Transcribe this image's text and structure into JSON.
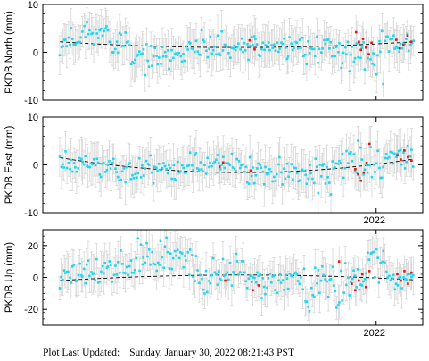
{
  "chart_data": [
    {
      "type": "scatter",
      "ylabel": "PKDB North (mm)",
      "ylim": [
        -10,
        10
      ],
      "yticks": [
        10,
        0,
        -10
      ],
      "xtick_labels": [],
      "trend": {
        "start": 2.2,
        "mid": 1.0,
        "end": 2.2
      },
      "segments": [
        {
          "t0": 0.0,
          "t1": 0.06,
          "center": 2.5,
          "amp": 1.2
        },
        {
          "t0": 0.06,
          "t1": 0.14,
          "center": 4.3,
          "amp": 1.0
        },
        {
          "t0": 0.14,
          "t1": 0.2,
          "center": 2.0,
          "amp": 1.3
        },
        {
          "t0": 0.2,
          "t1": 0.33,
          "center": -1.4,
          "amp": 1.4
        },
        {
          "t0": 0.33,
          "t1": 0.52,
          "center": 0.6,
          "amp": 1.4
        },
        {
          "t0": 0.52,
          "t1": 0.68,
          "center": 1.3,
          "amp": 1.3
        },
        {
          "t0": 0.68,
          "t1": 0.78,
          "center": 0.5,
          "amp": 1.5
        },
        {
          "t0": 0.78,
          "t1": 0.86,
          "center": 0.0,
          "amp": 1.8
        },
        {
          "t0": 0.86,
          "t1": 0.92,
          "center": -0.8,
          "amp": 2.6
        },
        {
          "t0": 0.92,
          "t1": 1.0,
          "center": 1.8,
          "amp": 1.5
        }
      ],
      "red_points": [
        {
          "t": 0.537,
          "y": 2.5
        },
        {
          "t": 0.551,
          "y": 0.6
        },
        {
          "t": 0.838,
          "y": 4.2
        },
        {
          "t": 0.846,
          "y": 2.2
        },
        {
          "t": 0.852,
          "y": 0.5
        },
        {
          "t": 0.858,
          "y": 2.8
        },
        {
          "t": 0.866,
          "y": 1.0
        },
        {
          "t": 0.874,
          "y": -0.4
        },
        {
          "t": 0.882,
          "y": 2.0
        },
        {
          "t": 0.952,
          "y": 2.6
        },
        {
          "t": 0.962,
          "y": 0.8
        },
        {
          "t": 0.972,
          "y": 1.5
        },
        {
          "t": 0.984,
          "y": 3.5
        },
        {
          "t": 0.994,
          "y": 2.2
        }
      ],
      "err": 3.6,
      "seed": 11,
      "n": 250
    },
    {
      "type": "scatter",
      "ylabel": "PKDB East (mm)",
      "ylim": [
        -10,
        10
      ],
      "yticks": [
        10,
        0,
        -10
      ],
      "xtick_labels": [
        {
          "t": 0.895,
          "label": "2022"
        }
      ],
      "trend": {
        "start": 1.5,
        "mid": -1.6,
        "end": 1.2
      },
      "segments": [
        {
          "t0": 0.0,
          "t1": 0.1,
          "center": 0.6,
          "amp": 1.6
        },
        {
          "t0": 0.1,
          "t1": 0.2,
          "center": -0.6,
          "amp": 1.5
        },
        {
          "t0": 0.2,
          "t1": 0.35,
          "center": -0.8,
          "amp": 1.4
        },
        {
          "t0": 0.35,
          "t1": 0.52,
          "center": 0.0,
          "amp": 1.3
        },
        {
          "t0": 0.52,
          "t1": 0.68,
          "center": -1.6,
          "amp": 1.4
        },
        {
          "t0": 0.68,
          "t1": 0.78,
          "center": -2.4,
          "amp": 1.8
        },
        {
          "t0": 0.78,
          "t1": 0.86,
          "center": 0.6,
          "amp": 1.8
        },
        {
          "t0": 0.86,
          "t1": 0.92,
          "center": -0.4,
          "amp": 2.4
        },
        {
          "t0": 0.92,
          "t1": 1.0,
          "center": 1.8,
          "amp": 1.2
        }
      ],
      "red_points": [
        {
          "t": 0.452,
          "y": -0.4
        },
        {
          "t": 0.462,
          "y": 0.5
        },
        {
          "t": 0.54,
          "y": -1.2
        },
        {
          "t": 0.836,
          "y": -0.9
        },
        {
          "t": 0.844,
          "y": -2.0
        },
        {
          "t": 0.852,
          "y": -3.3
        },
        {
          "t": 0.86,
          "y": -1.6
        },
        {
          "t": 0.868,
          "y": 0.4
        },
        {
          "t": 0.876,
          "y": 4.4
        },
        {
          "t": 0.955,
          "y": 2.0
        },
        {
          "t": 0.965,
          "y": 1.1
        },
        {
          "t": 0.975,
          "y": 3.0
        },
        {
          "t": 0.985,
          "y": 1.6
        },
        {
          "t": 0.995,
          "y": 0.9
        }
      ],
      "err": 3.6,
      "seed": 23,
      "n": 250
    },
    {
      "type": "scatter",
      "ylabel": "PKDB Up (mm)",
      "ylim": [
        -30,
        30
      ],
      "yticks": [
        20,
        0,
        -20
      ],
      "xtick_labels": [
        {
          "t": 0.895,
          "label": "2022"
        }
      ],
      "trend": {
        "start": -2.0,
        "mid": 1.5,
        "end": -1.5
      },
      "segments": [
        {
          "t0": 0.0,
          "t1": 0.12,
          "center": 3.0,
          "amp": 4.0
        },
        {
          "t0": 0.12,
          "t1": 0.22,
          "center": 6.0,
          "amp": 5.0
        },
        {
          "t0": 0.22,
          "t1": 0.38,
          "center": 12.0,
          "amp": 6.0
        },
        {
          "t0": 0.38,
          "t1": 0.52,
          "center": 2.0,
          "amp": 5.0
        },
        {
          "t0": 0.52,
          "t1": 0.68,
          "center": -2.0,
          "amp": 5.0
        },
        {
          "t0": 0.68,
          "t1": 0.8,
          "center": -8.0,
          "amp": 8.0
        },
        {
          "t0": 0.8,
          "t1": 0.86,
          "center": 0.0,
          "amp": 5.0
        },
        {
          "t0": 0.86,
          "t1": 0.92,
          "center": 8.0,
          "amp": 7.0
        },
        {
          "t0": 0.92,
          "t1": 1.0,
          "center": 0.0,
          "amp": 5.0
        }
      ],
      "red_points": [
        {
          "t": 0.468,
          "y": -2.0
        },
        {
          "t": 0.546,
          "y": -8.0
        },
        {
          "t": 0.562,
          "y": -5.0
        },
        {
          "t": 0.79,
          "y": 10.0
        },
        {
          "t": 0.826,
          "y": -4.0
        },
        {
          "t": 0.836,
          "y": -8.0
        },
        {
          "t": 0.846,
          "y": -2.0
        },
        {
          "t": 0.856,
          "y": 2.0
        },
        {
          "t": 0.866,
          "y": -6.0
        },
        {
          "t": 0.876,
          "y": 4.0
        },
        {
          "t": 0.955,
          "y": 2.0
        },
        {
          "t": 0.965,
          "y": -2.0
        },
        {
          "t": 0.975,
          "y": 4.0
        },
        {
          "t": 0.985,
          "y": -4.0
        },
        {
          "t": 0.995,
          "y": 3.0
        }
      ],
      "err": 10,
      "seed": 37,
      "n": 250
    }
  ],
  "colors": {
    "points": "#1fd8f0",
    "red_points": "#ee1111",
    "error_bars": "#d6d6d6",
    "trend": "#000000",
    "axes": "#000000"
  },
  "footer": {
    "label": "Plot Last Updated:",
    "value": "Sunday, January 30, 2022 08:21:43 PST"
  }
}
